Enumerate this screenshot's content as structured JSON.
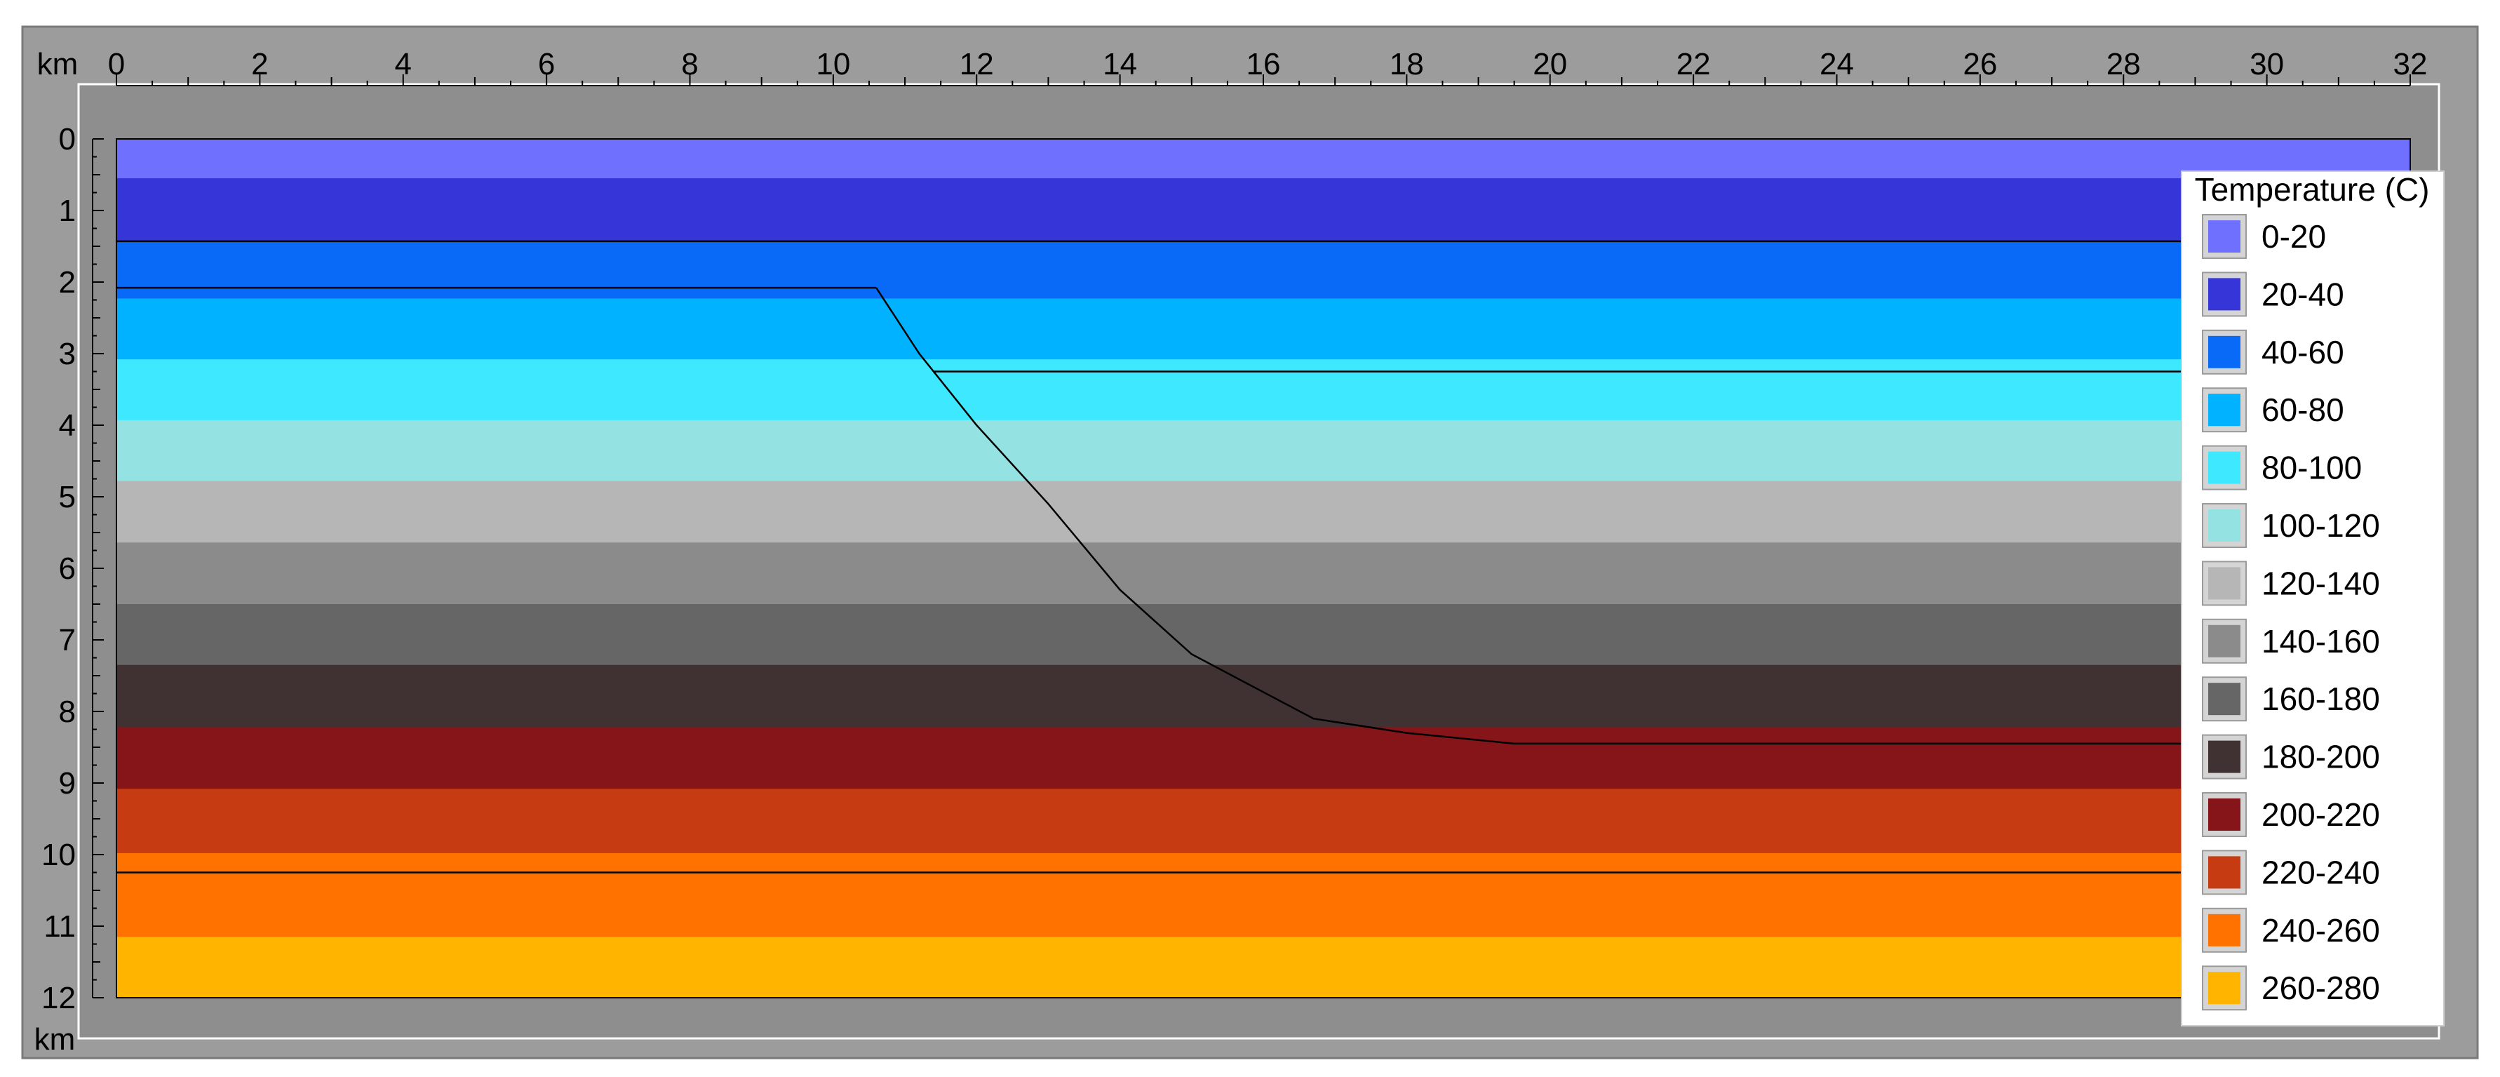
{
  "chart_data": {
    "type": "heatmap",
    "xlabel": "km",
    "ylabel": "km",
    "bottom_label": "km",
    "xlim": [
      0,
      32
    ],
    "ylim": [
      0,
      12
    ],
    "x_ticks": [
      "0",
      "2",
      "4",
      "6",
      "8",
      "10",
      "12",
      "14",
      "16",
      "18",
      "20",
      "22",
      "24",
      "26",
      "28",
      "30",
      "32"
    ],
    "y_ticks": [
      "0",
      "1",
      "2",
      "3",
      "4",
      "5",
      "6",
      "7",
      "8",
      "9",
      "10",
      "11",
      "12"
    ],
    "legend": {
      "title": "Temperature (C)",
      "placement": "right",
      "entries": [
        {
          "label": "0-20",
          "color": "#7070ff"
        },
        {
          "label": "20-40",
          "color": "#3535d8"
        },
        {
          "label": "40-60",
          "color": "#0a6af8"
        },
        {
          "label": "60-80",
          "color": "#00b2ff"
        },
        {
          "label": "80-100",
          "color": "#3ee8ff"
        },
        {
          "label": "100-120",
          "color": "#95e2e2"
        },
        {
          "label": "120-140",
          "color": "#b6b6b6"
        },
        {
          "label": "140-160",
          "color": "#8b8b8b"
        },
        {
          "label": "160-180",
          "color": "#666666"
        },
        {
          "label": "180-200",
          "color": "#403232"
        },
        {
          "label": "200-220",
          "color": "#861519"
        },
        {
          "label": "220-240",
          "color": "#c63b12"
        },
        {
          "label": "240-260",
          "color": "#ff7200"
        },
        {
          "label": "260-280",
          "color": "#ffb500"
        }
      ]
    },
    "bands": [
      {
        "range": "0-20",
        "top": 0,
        "bottom": 0.55
      },
      {
        "range": "20-40",
        "top": 0.55,
        "bottom": 1.43
      },
      {
        "range": "40-60",
        "top": 1.43,
        "bottom": 2.23
      },
      {
        "range": "60-80",
        "top": 2.23,
        "bottom": 3.08
      },
      {
        "range": "80-100",
        "top": 3.08,
        "bottom": 3.93
      },
      {
        "range": "100-120",
        "top": 3.93,
        "bottom": 4.78
      },
      {
        "range": "120-140",
        "top": 4.78,
        "bottom": 5.64
      },
      {
        "range": "140-160",
        "top": 5.64,
        "bottom": 6.5
      },
      {
        "range": "160-180",
        "top": 6.5,
        "bottom": 7.35
      },
      {
        "range": "180-200",
        "top": 7.35,
        "bottom": 8.22
      },
      {
        "range": "200-220",
        "top": 8.22,
        "bottom": 9.08
      },
      {
        "range": "220-240",
        "top": 9.08,
        "bottom": 9.98
      },
      {
        "range": "240-260",
        "top": 9.98,
        "bottom": 11.15
      },
      {
        "range": "260-280",
        "top": 11.15,
        "bottom": 12
      }
    ],
    "boundary_lines": [
      {
        "points": [
          [
            0,
            1.43
          ],
          [
            32,
            1.43
          ]
        ]
      },
      {
        "points": [
          [
            0,
            2.08
          ],
          [
            10.6,
            2.08
          ]
        ]
      },
      {
        "points": [
          [
            11.4,
            3.25
          ],
          [
            32,
            3.25
          ]
        ]
      },
      {
        "points": [
          [
            0,
            10.25
          ],
          [
            32,
            10.25
          ]
        ]
      },
      {
        "points": [
          [
            10.6,
            2.08
          ],
          [
            11.2,
            3.0
          ],
          [
            12,
            4.0
          ],
          [
            13,
            5.1
          ],
          [
            14,
            6.3
          ],
          [
            15,
            7.2
          ],
          [
            16.7,
            8.1
          ],
          [
            18,
            8.3
          ],
          [
            19.5,
            8.45
          ],
          [
            32,
            8.45
          ]
        ]
      }
    ]
  }
}
